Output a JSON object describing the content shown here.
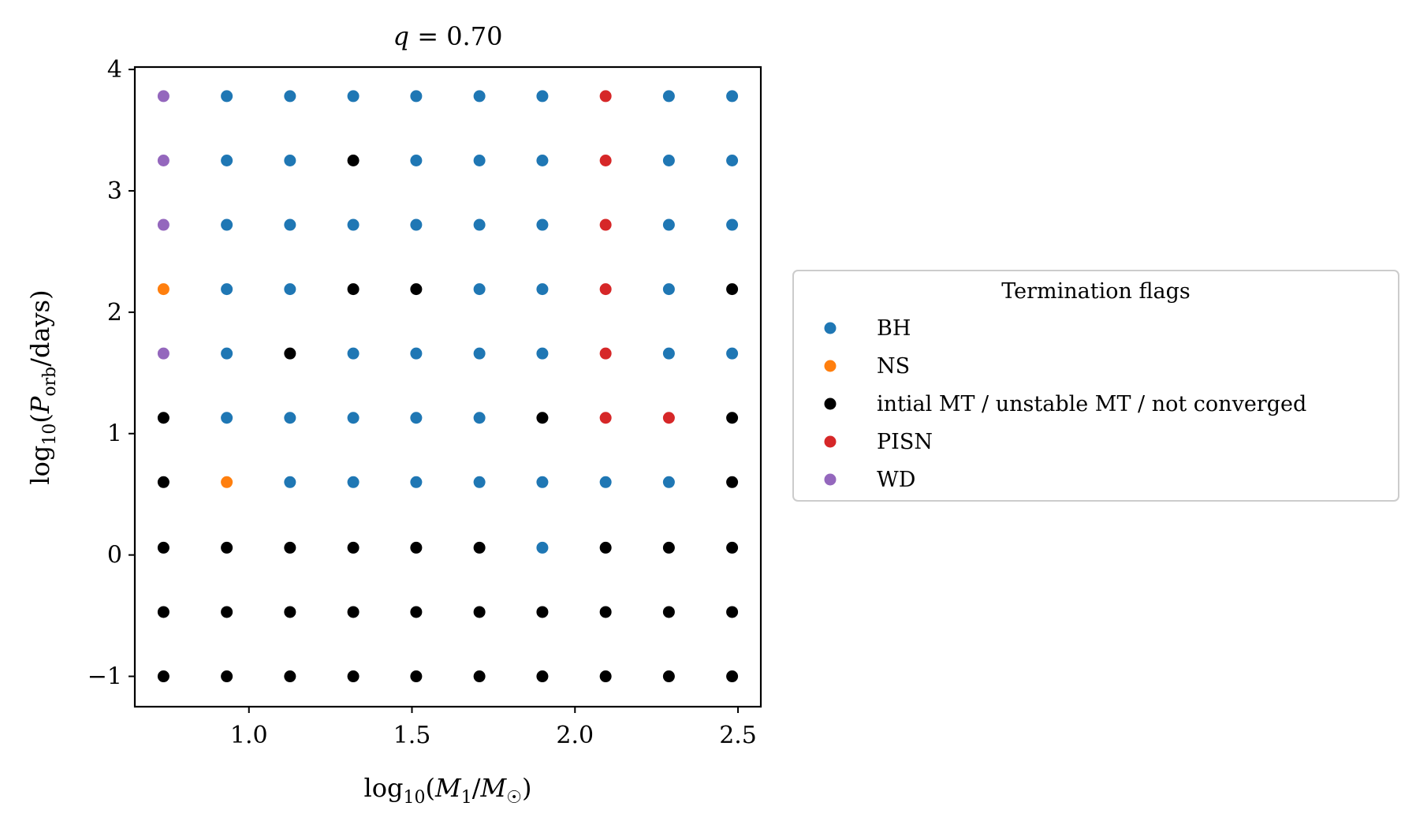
{
  "chart_data": {
    "type": "scatter",
    "title": "q = 0.70",
    "xlabel": "log10(M1/M☉)",
    "ylabel": "log10(Porb/days)",
    "xlim": [
      0.65,
      2.57
    ],
    "ylim": [
      -1.25,
      4.02
    ],
    "xticks": [
      1.0,
      1.5,
      2.0,
      2.5
    ],
    "xtick_labels": [
      "1.0",
      "1.5",
      "2.0",
      "2.5"
    ],
    "yticks": [
      -1,
      0,
      1,
      2,
      3,
      4
    ],
    "ytick_labels": [
      "−1",
      "0",
      "1",
      "2",
      "3",
      "4"
    ],
    "x": [
      0.738,
      0.932,
      1.126,
      1.32,
      1.513,
      1.707,
      1.9,
      2.094,
      2.288,
      2.482
    ],
    "y": [
      3.78,
      3.25,
      2.72,
      2.19,
      1.66,
      1.13,
      0.6,
      0.06,
      -0.47,
      -1.0
    ],
    "flags": [
      [
        "WD",
        "BH",
        "BH",
        "BH",
        "BH",
        "BH",
        "BH",
        "PISN",
        "BH",
        "BH"
      ],
      [
        "WD",
        "BH",
        "BH",
        "MT",
        "BH",
        "BH",
        "BH",
        "PISN",
        "BH",
        "BH"
      ],
      [
        "WD",
        "BH",
        "BH",
        "BH",
        "BH",
        "BH",
        "BH",
        "PISN",
        "BH",
        "BH"
      ],
      [
        "NS",
        "BH",
        "BH",
        "MT",
        "MT",
        "BH",
        "BH",
        "PISN",
        "BH",
        "MT"
      ],
      [
        "WD",
        "BH",
        "MT",
        "BH",
        "BH",
        "BH",
        "BH",
        "PISN",
        "BH",
        "BH"
      ],
      [
        "MT",
        "BH",
        "BH",
        "BH",
        "BH",
        "BH",
        "MT",
        "PISN",
        "PISN",
        "MT"
      ],
      [
        "MT",
        "NS",
        "BH",
        "BH",
        "BH",
        "BH",
        "BH",
        "BH",
        "BH",
        "MT"
      ],
      [
        "MT",
        "MT",
        "MT",
        "MT",
        "MT",
        "MT",
        "BH",
        "MT",
        "MT",
        "MT"
      ],
      [
        "MT",
        "MT",
        "MT",
        "MT",
        "MT",
        "MT",
        "MT",
        "MT",
        "MT",
        "MT"
      ],
      [
        "MT",
        "MT",
        "MT",
        "MT",
        "MT",
        "MT",
        "MT",
        "MT",
        "MT",
        "MT"
      ]
    ],
    "legend": {
      "title": "Termination flags",
      "placement": "center-right outside",
      "entries": [
        {
          "key": "BH",
          "label": "BH",
          "color": "#1f77b4"
        },
        {
          "key": "NS",
          "label": "NS",
          "color": "#ff7f0e"
        },
        {
          "key": "MT",
          "label": "intial MT / unstable MT / not converged",
          "color": "#000000"
        },
        {
          "key": "PISN",
          "label": "PISN",
          "color": "#d62728"
        },
        {
          "key": "WD",
          "label": "WD",
          "color": "#9467bd"
        }
      ]
    }
  }
}
